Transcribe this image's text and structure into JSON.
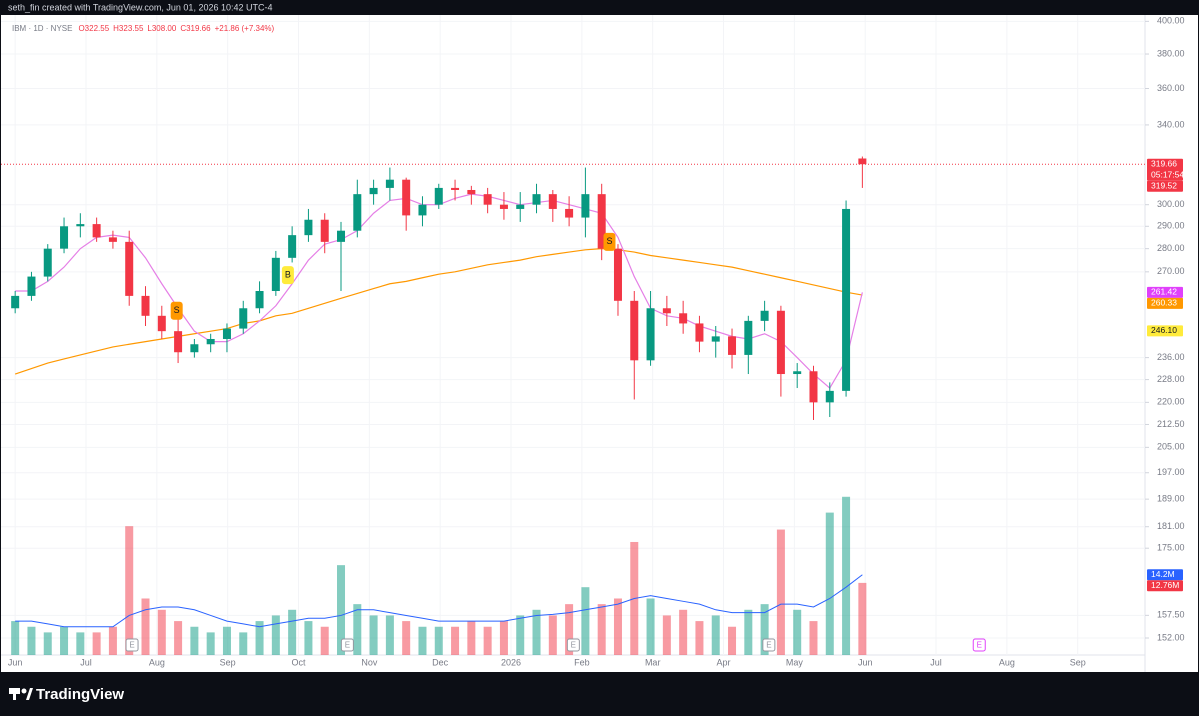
{
  "header": {
    "credit": "seth_fin created with TradingView.com, Jun 01, 2026 10:42 UTC-4",
    "brand": "TradingView"
  },
  "chart_data": {
    "type": "candlestick",
    "symbol": "IBM · 1D · NYSE",
    "ohlc_labels": [
      "O322.55",
      "H323.55",
      "L308.00",
      "C319.66",
      "+21.86 (+7.34%)"
    ],
    "log_scale": true,
    "grid": true,
    "up_color": "#089981",
    "down_color": "#f23645",
    "xlim": [
      -0.2,
      15.95
    ],
    "xticks": [
      {
        "value": 0,
        "label": "Jun"
      },
      {
        "value": 1,
        "label": "Jul"
      },
      {
        "value": 2,
        "label": "Aug"
      },
      {
        "value": 3,
        "label": "Sep"
      },
      {
        "value": 4,
        "label": "Oct"
      },
      {
        "value": 5,
        "label": "Nov"
      },
      {
        "value": 6,
        "label": "Dec"
      },
      {
        "value": 7,
        "label": "2026"
      },
      {
        "value": 8,
        "label": "Feb"
      },
      {
        "value": 9,
        "label": "Mar"
      },
      {
        "value": 10,
        "label": "Apr"
      },
      {
        "value": 11,
        "label": "May"
      },
      {
        "value": 12,
        "label": "Jun"
      },
      {
        "value": 13,
        "label": "Jul"
      },
      {
        "value": 14,
        "label": "Aug"
      },
      {
        "value": 15,
        "label": "Sep"
      }
    ],
    "ylim": [
      148,
      404
    ],
    "yticks": [
      {
        "value": 400,
        "label": "400.00"
      },
      {
        "value": 380,
        "label": "380.00"
      },
      {
        "value": 360,
        "label": "360.00"
      },
      {
        "value": 340,
        "label": "340.00"
      },
      {
        "value": 300,
        "label": "300.00"
      },
      {
        "value": 290,
        "label": "290.00"
      },
      {
        "value": 280,
        "label": "280.00"
      },
      {
        "value": 270,
        "label": "270.00"
      },
      {
        "value": 236,
        "label": "236.00"
      },
      {
        "value": 228,
        "label": "228.00"
      },
      {
        "value": 220,
        "label": "220.00"
      },
      {
        "value": 212.5,
        "label": "212.50"
      },
      {
        "value": 205,
        "label": "205.00"
      },
      {
        "value": 197,
        "label": "197.00"
      },
      {
        "value": 189,
        "label": "189.00"
      },
      {
        "value": 181,
        "label": "181.00"
      },
      {
        "value": 175,
        "label": "175.00"
      },
      {
        "value": 157.5,
        "label": "157.50"
      },
      {
        "value": 152,
        "label": "152.00"
      }
    ],
    "x": [
      0,
      0.23,
      0.46,
      0.69,
      0.92,
      1.15,
      1.38,
      1.61,
      1.84,
      2.07,
      2.3,
      2.53,
      2.76,
      2.99,
      3.22,
      3.45,
      3.68,
      3.91,
      4.14,
      4.37,
      4.6,
      4.83,
      5.06,
      5.29,
      5.52,
      5.75,
      5.98,
      6.21,
      6.44,
      6.67,
      6.9,
      7.13,
      7.36,
      7.59,
      7.82,
      8.05,
      8.28,
      8.51,
      8.74,
      8.97,
      9.2,
      9.43,
      9.66,
      9.89,
      10.12,
      10.35,
      10.58,
      10.81,
      11.04,
      11.27,
      11.5,
      11.73,
      11.96
    ],
    "open": [
      255,
      260,
      268,
      280,
      290,
      291,
      285,
      283,
      260,
      252,
      246,
      238,
      241,
      243,
      247,
      255,
      262,
      276,
      286,
      293,
      283,
      288,
      305,
      308,
      312,
      295,
      300,
      308,
      307,
      305,
      300,
      298,
      300,
      305,
      298,
      294,
      305,
      280,
      258,
      235,
      255,
      253,
      249,
      242,
      244,
      237,
      250,
      254,
      230,
      231,
      220,
      224,
      322.55
    ],
    "high": [
      262,
      270,
      282,
      294,
      296,
      294,
      288,
      288,
      264,
      256,
      252,
      243,
      245,
      249,
      258,
      266,
      279,
      290,
      298,
      296,
      292,
      312,
      312,
      318,
      313,
      304,
      310,
      312,
      309,
      308,
      306,
      306,
      310,
      307,
      304,
      318,
      310,
      282,
      262,
      262,
      260,
      258,
      252,
      248,
      247,
      252,
      258,
      256,
      234,
      233,
      227,
      302,
      323.55
    ],
    "low": [
      253,
      258,
      266,
      278,
      285,
      283,
      280,
      256,
      248,
      243,
      234,
      236,
      238,
      238,
      245,
      253,
      260,
      274,
      283,
      278,
      262,
      285,
      300,
      302,
      288,
      290,
      298,
      302,
      300,
      296,
      293,
      292,
      296,
      292,
      290,
      285,
      275,
      252,
      221,
      233,
      248,
      245,
      238,
      236,
      232,
      230,
      246,
      222,
      225,
      214,
      215,
      222,
      308
    ],
    "close": [
      260,
      268,
      280,
      290,
      291,
      285,
      283,
      260,
      252,
      246,
      238,
      241,
      243,
      247,
      255,
      262,
      276,
      286,
      293,
      283,
      288,
      305,
      308,
      312,
      295,
      300,
      308,
      307,
      305,
      300,
      298,
      300,
      305,
      298,
      294,
      305,
      280,
      258,
      235,
      255,
      253,
      249,
      242,
      244,
      237,
      250,
      254,
      230,
      231,
      220,
      224,
      298,
      319.66
    ],
    "lines": [
      {
        "color": "#ff9800",
        "values": [
          230,
          232,
          234,
          235.5,
          237,
          238.5,
          240,
          241,
          242,
          243,
          244,
          245,
          246,
          247,
          249,
          250,
          252,
          253,
          255,
          257,
          259,
          261,
          263,
          265,
          266,
          267.5,
          269,
          270,
          271.5,
          273,
          274,
          275,
          276.5,
          277.5,
          278.5,
          279.5,
          280,
          279.5,
          278.5,
          277,
          276,
          275,
          274,
          273,
          272,
          270.5,
          269,
          267.5,
          266,
          264.5,
          263,
          261.5,
          260.33
        ]
      },
      {
        "color": "#e57fe6",
        "values": [
          262,
          262,
          266,
          272,
          280,
          285,
          286,
          285,
          276,
          265,
          255,
          246,
          242,
          242,
          245,
          250,
          256,
          265,
          275,
          282,
          284,
          288,
          296,
          302,
          303,
          300,
          300,
          303,
          305,
          304,
          302,
          300,
          301,
          302,
          300,
          298,
          296,
          285,
          268,
          255,
          252,
          251,
          248,
          246,
          244,
          243,
          245,
          242,
          236,
          230,
          225,
          235,
          261.42
        ]
      }
    ],
    "volume": {
      "ylim": [
        0,
        29.2
      ],
      "values": [
        6,
        5,
        4,
        5,
        4,
        4,
        5,
        22.8,
        10,
        8,
        6,
        5,
        4,
        5,
        4,
        6,
        7,
        8,
        6,
        5,
        15.9,
        9,
        7,
        7,
        6,
        5,
        5,
        5,
        6,
        5,
        6,
        7,
        8,
        7,
        9,
        12,
        9,
        10,
        20,
        10,
        7,
        8,
        6,
        7,
        5,
        8,
        9,
        22.2,
        8,
        6,
        25.2,
        28,
        12.76
      ],
      "ma": {
        "color": "#2962ff",
        "values": [
          6,
          6,
          5.5,
          5,
          5,
          5,
          5,
          7,
          8,
          8.5,
          8.5,
          8,
          7,
          6,
          5.5,
          5,
          5.5,
          6,
          6.5,
          6.5,
          7,
          8,
          8,
          7.5,
          7,
          6.5,
          6,
          6,
          6,
          6,
          6,
          6.5,
          7,
          7.2,
          7.5,
          8,
          8.5,
          9,
          10,
          10.5,
          10,
          9.5,
          9,
          8,
          7.5,
          7.5,
          7.5,
          9,
          9,
          8.5,
          10,
          12,
          14.2
        ]
      },
      "labels": [
        {
          "value": 14.2,
          "label": "14.2M",
          "color": "#2962ff"
        },
        {
          "value": 12.76,
          "label": "12.76M",
          "color": "#f23645"
        }
      ]
    },
    "last_price_line": {
      "value": 319.66,
      "color": "#f23645"
    },
    "price_labels": [
      {
        "value": 319.66,
        "label": "319.66",
        "color": "#f23645",
        "countdown": "05:17:54"
      },
      {
        "value": 319.52,
        "label": "319.52",
        "color": "#f23645"
      },
      {
        "value": 261.42,
        "label": "261.42",
        "color": "#e040fb"
      },
      {
        "value": 260.33,
        "label": "260.33",
        "color": "#ff9800"
      },
      {
        "value": 246.1,
        "label": "246.10",
        "color": "#ffeb3b"
      }
    ],
    "markers": [
      {
        "label": "S",
        "x": 2.28,
        "price": 254,
        "color": "#ff9800"
      },
      {
        "label": "B",
        "x": 3.85,
        "price": 268.6,
        "color": "#ffeb3b"
      },
      {
        "label": "S",
        "x": 8.39,
        "price": 283,
        "color": "#ff9800"
      }
    ],
    "earnings": [
      {
        "label": "E",
        "x": 1.65,
        "color": "#9598a1"
      },
      {
        "label": "E",
        "x": 4.69,
        "color": "#9598a1"
      },
      {
        "label": "E",
        "x": 7.88,
        "color": "#9598a1"
      },
      {
        "label": "E",
        "x": 10.64,
        "color": "#9598a1"
      },
      {
        "label": "E",
        "x": 13.61,
        "color": "#e040fb"
      }
    ]
  }
}
